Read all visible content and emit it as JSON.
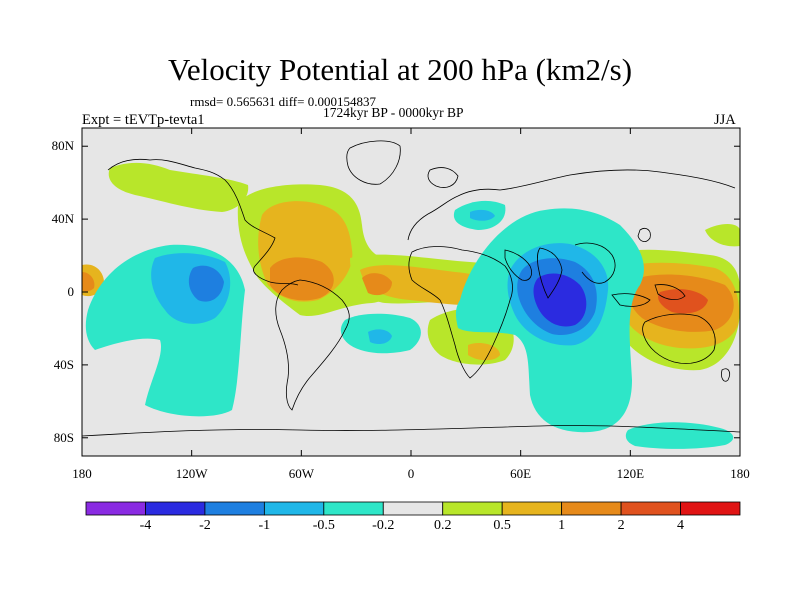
{
  "figure": {
    "title": "Velocity Potential at 200 hPa (km2/s)",
    "stats": "rmsd= 0.565631 diff= 0.000154837",
    "period": "1724kyr BP - 0000kyr BP",
    "expt": "Expt = tEVTp-tevta1",
    "season": "JJA"
  },
  "axes": {
    "lat_ticks": [
      {
        "value": 80,
        "label": "80N"
      },
      {
        "value": 40,
        "label": "40N"
      },
      {
        "value": 0,
        "label": "0"
      },
      {
        "value": -40,
        "label": "40S"
      },
      {
        "value": -80,
        "label": "80S"
      }
    ],
    "lon_ticks": [
      {
        "value": -180,
        "label": "180"
      },
      {
        "value": -120,
        "label": "120W"
      },
      {
        "value": -60,
        "label": "60W"
      },
      {
        "value": 0,
        "label": "0"
      },
      {
        "value": 60,
        "label": "60E"
      },
      {
        "value": 120,
        "label": "120E"
      },
      {
        "value": 180,
        "label": "180"
      }
    ],
    "lon_range": [
      -180,
      180
    ],
    "lat_range": [
      -90,
      90
    ]
  },
  "colorbar": {
    "colors": [
      "#8a2be2",
      "#2b2be0",
      "#1e7fe0",
      "#20b7e8",
      "#2ee6c8",
      "#e6e6e6",
      "#b8e62a",
      "#e6b41e",
      "#e68a1a",
      "#e0521e",
      "#e01414"
    ],
    "labels": [
      "-4",
      "-2",
      "-1",
      "-0.5",
      "-0.2",
      "0.2",
      "0.5",
      "1",
      "2",
      "4"
    ]
  },
  "colors": {
    "background": "#e6e6e6",
    "coast": "#000000"
  }
}
